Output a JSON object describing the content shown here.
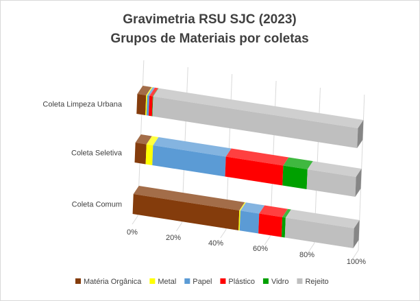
{
  "chart_data": {
    "type": "bar",
    "orientation": "horizontal",
    "stacking": "100%",
    "style": "3d",
    "title": [
      "Gravimetria RSU SJC (2023)",
      "Grupos de Materiais por coletas"
    ],
    "categories": [
      "Coleta Limpeza Urbana",
      "Coleta Seletiva",
      "Coleta Comum"
    ],
    "x_ticks": [
      "0%",
      "20%",
      "40%",
      "60%",
      "80%",
      "100%"
    ],
    "xlim": [
      0,
      100
    ],
    "grid": true,
    "legend_position": "bottom",
    "series": [
      {
        "name": "Matéria Orgânica",
        "color": "#843C0C",
        "values": [
          4.0,
          5.0,
          48.0
        ]
      },
      {
        "name": "Metal",
        "color": "#FFFF00",
        "values": [
          0.5,
          3.0,
          0.5
        ]
      },
      {
        "name": "Papel",
        "color": "#5B9BD5",
        "values": [
          1.0,
          33.0,
          8.5
        ]
      },
      {
        "name": "Plástico",
        "color": "#FF0000",
        "values": [
          1.5,
          26.0,
          10.5
        ]
      },
      {
        "name": "Vidro",
        "color": "#00A000",
        "values": [
          0.2,
          11.0,
          1.5
        ]
      },
      {
        "name": "Rejeito",
        "color": "#BFBFBF",
        "values": [
          92.8,
          22.0,
          31.0
        ]
      }
    ]
  }
}
